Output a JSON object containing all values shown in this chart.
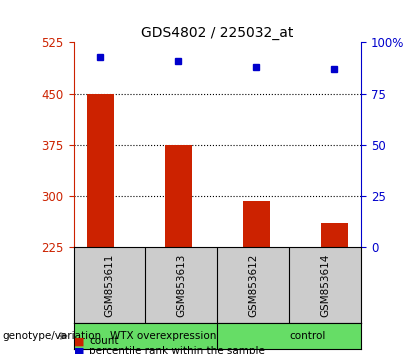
{
  "title": "GDS4802 / 225032_at",
  "samples": [
    "GSM853611",
    "GSM853613",
    "GSM853612",
    "GSM853614"
  ],
  "bar_values": [
    450,
    375,
    293,
    260
  ],
  "percentile_values": [
    93,
    91,
    88,
    87
  ],
  "bar_color": "#cc2200",
  "percentile_color": "#0000cc",
  "ymin": 225,
  "ymax": 525,
  "yticks": [
    225,
    300,
    375,
    450,
    525
  ],
  "y2min": 0,
  "y2max": 100,
  "y2ticks": [
    0,
    25,
    50,
    75,
    100
  ],
  "y2ticklabels": [
    "0",
    "25",
    "50",
    "75",
    "100%"
  ],
  "groups": [
    {
      "label": "WTX overexpression",
      "indices": [
        0,
        1
      ],
      "color": "#66dd66"
    },
    {
      "label": "control",
      "indices": [
        2,
        3
      ],
      "color": "#66dd66"
    }
  ],
  "group_label_prefix": "genotype/variation",
  "bg_color": "#ffffff",
  "plot_bg": "#ffffff",
  "tick_label_color_left": "#cc2200",
  "tick_label_color_right": "#0000cc",
  "sample_bg": "#cccccc",
  "legend_count": "count",
  "legend_pct": "percentile rank within the sample"
}
